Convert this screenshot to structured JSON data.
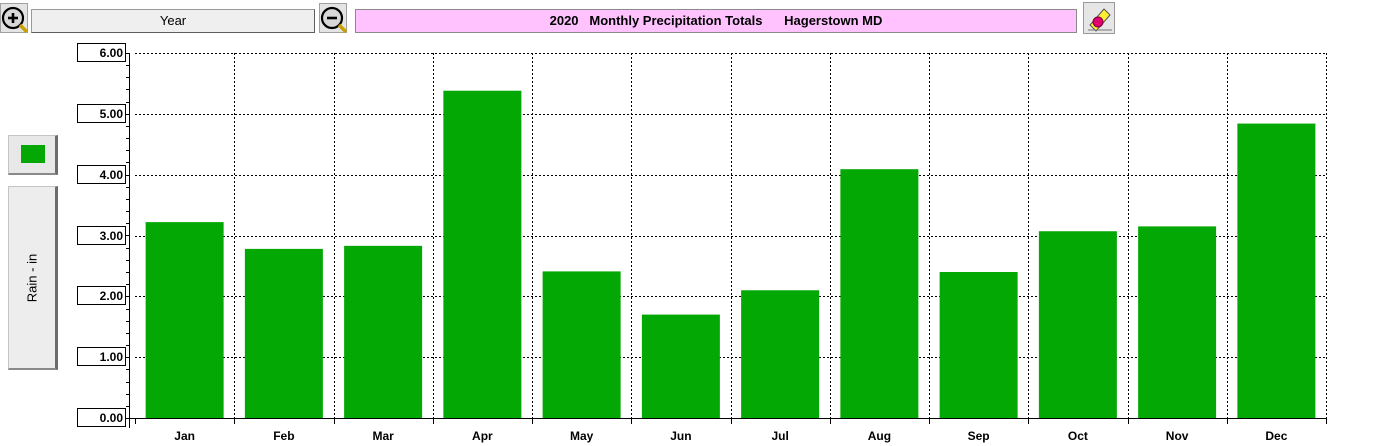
{
  "toolbar": {
    "zoom_in_icon": "zoom-in-icon",
    "zoom_out_icon": "zoom-out-icon",
    "period": "Year",
    "title": "2020   Monthly Precipitation Totals      Hagerstown MD",
    "edit_icon": "pen-eraser-icon"
  },
  "legend": {
    "ylabel": "Rain - in",
    "swatch_color": "#04a804"
  },
  "colors": {
    "bar": "#04a804",
    "title_bg": "#ffc2ff"
  },
  "chart_data": {
    "type": "bar",
    "title": "2020   Monthly Precipitation Totals      Hagerstown MD",
    "ylabel": "Rain - in",
    "xlabel": "",
    "categories": [
      "Jan",
      "Feb",
      "Mar",
      "Apr",
      "May",
      "Jun",
      "Jul",
      "Aug",
      "Sep",
      "Oct",
      "Nov",
      "Dec"
    ],
    "values": [
      3.22,
      2.78,
      2.83,
      5.38,
      2.41,
      1.7,
      2.1,
      4.09,
      2.4,
      3.07,
      3.15,
      4.84
    ],
    "ylim": [
      0,
      6
    ],
    "yticks": [
      "0.00",
      "1.00",
      "2.00",
      "3.00",
      "4.00",
      "5.00",
      "6.00"
    ],
    "grid": true,
    "gridstyle": "dashed"
  }
}
